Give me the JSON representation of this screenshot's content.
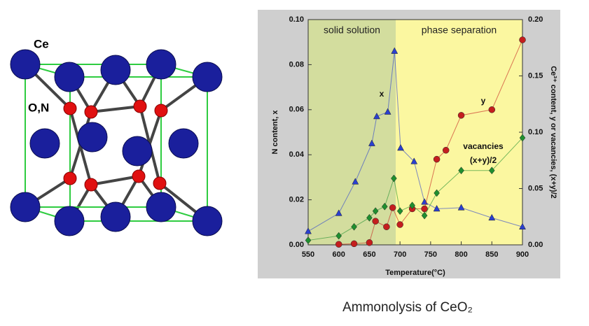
{
  "structure": {
    "labels": [
      "Ce",
      "O,N"
    ]
  },
  "caption": "Ammonolysis of CeO₂",
  "chart_data": {
    "type": "line",
    "xlabel": "Temperature(°C)",
    "ylabel": "N content, x",
    "y2label": "Ce³⁺ content, y or vacancies, (x+y)/2",
    "xlim": [
      550,
      900
    ],
    "xticks": [
      550,
      600,
      650,
      700,
      750,
      800,
      850,
      900
    ],
    "ylim": [
      0,
      0.1
    ],
    "yticks": [
      {
        "value": 0,
        "label": "0.00"
      },
      {
        "value": 0.02,
        "label": "0.02"
      },
      {
        "value": 0.04,
        "label": "0.04"
      },
      {
        "value": 0.06,
        "label": "0.06"
      },
      {
        "value": 0.08,
        "label": "0.08"
      },
      {
        "value": 0.1,
        "label": "0.10"
      }
    ],
    "y2lim": [
      0,
      0.2
    ],
    "y2ticks": [
      {
        "value": 0,
        "label": "0.00"
      },
      {
        "value": 0.05,
        "label": "0.05"
      },
      {
        "value": 0.1,
        "label": "0.10"
      },
      {
        "value": 0.15,
        "label": "0.15"
      },
      {
        "value": 0.2,
        "label": "0.20"
      }
    ],
    "regions": [
      {
        "label": "solid solution",
        "from": 550,
        "to": 693,
        "color": "#d3dd9e"
      },
      {
        "label": "phase separation",
        "from": 693,
        "to": 900,
        "color": "#fbf7a0"
      }
    ],
    "series": [
      {
        "name": "x",
        "color": "#2a3fd0",
        "marker": "triangle",
        "x": [
          550,
          600,
          627,
          654,
          662,
          680,
          691,
          701,
          723,
          740,
          760,
          800,
          850,
          900
        ],
        "values": [
          0.006,
          0.014,
          0.028,
          0.045,
          0.057,
          0.059,
          0.086,
          0.043,
          0.037,
          0.019,
          0.016,
          0.0165,
          0.012,
          0.008
        ]
      },
      {
        "name": "y",
        "color": "#c41e1e",
        "marker": "circle",
        "axis": "y2",
        "x": [
          600,
          625,
          650,
          660,
          678,
          688,
          700,
          720,
          740,
          760,
          775,
          800,
          850,
          900
        ],
        "values": [
          0.0005,
          0.001,
          0.002,
          0.021,
          0.016,
          0.033,
          0.018,
          0.032,
          0.032,
          0.076,
          0.084,
          0.115,
          0.12,
          0.182
        ]
      },
      {
        "name": "vacancies (x+y)/2",
        "color": "#1f8f2f",
        "marker": "diamond",
        "axis": "y2",
        "x": [
          550,
          600,
          625,
          650,
          660,
          675,
          690,
          700,
          720,
          740,
          760,
          800,
          850,
          900
        ],
        "values": [
          0.004,
          0.008,
          0.016,
          0.024,
          0.03,
          0.034,
          0.059,
          0.03,
          0.035,
          0.026,
          0.046,
          0.066,
          0.066,
          0.095
        ]
      }
    ],
    "annotations": [
      "x",
      "y",
      "vacancies",
      "(x+y)/2"
    ]
  }
}
